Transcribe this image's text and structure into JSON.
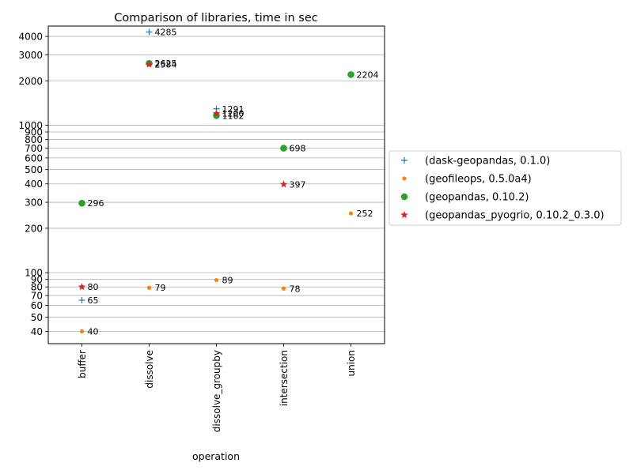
{
  "chart_data": {
    "type": "scatter",
    "title": "Comparison of libraries, time in sec",
    "xlabel": "operation",
    "ylabel": "",
    "y_scale": "log",
    "ylim": [
      33,
      4700
    ],
    "grid": "y-major-and-minor",
    "legend_position": "outside-right",
    "categories": [
      "buffer",
      "dissolve",
      "dissolve_groupby",
      "intersection",
      "union"
    ],
    "y_ticks": [
      40,
      50,
      60,
      70,
      80,
      90,
      100,
      200,
      300,
      400,
      500,
      600,
      700,
      800,
      900,
      1000,
      2000,
      3000,
      4000
    ],
    "series": [
      {
        "name": "(dask-geopandas, 0.1.0)",
        "marker": "plus",
        "color": "#1f77b4",
        "points": [
          {
            "x": "buffer",
            "y": 65
          },
          {
            "x": "dissolve",
            "y": 4285
          },
          {
            "x": "dissolve_groupby",
            "y": 1291
          }
        ]
      },
      {
        "name": "(geofileops, 0.5.0a4)",
        "marker": "point",
        "color": "#ff7f0e",
        "points": [
          {
            "x": "buffer",
            "y": 40
          },
          {
            "x": "dissolve",
            "y": 79
          },
          {
            "x": "dissolve_groupby",
            "y": 89
          },
          {
            "x": "intersection",
            "y": 78
          },
          {
            "x": "union",
            "y": 252
          }
        ]
      },
      {
        "name": "(geopandas, 0.10.2)",
        "marker": "circle",
        "color": "#2ca02c",
        "points": [
          {
            "x": "buffer",
            "y": 296
          },
          {
            "x": "dissolve",
            "y": 2625
          },
          {
            "x": "dissolve_groupby",
            "y": 1162
          },
          {
            "x": "intersection",
            "y": 698
          },
          {
            "x": "union",
            "y": 2204
          }
        ]
      },
      {
        "name": "(geopandas_pyogrio, 0.10.2_0.3.0)",
        "marker": "star",
        "color": "#d62728",
        "points": [
          {
            "x": "buffer",
            "y": 80
          },
          {
            "x": "dissolve",
            "y": 2584
          },
          {
            "x": "dissolve_groupby",
            "y": 1200
          },
          {
            "x": "intersection",
            "y": 397
          }
        ]
      }
    ]
  }
}
